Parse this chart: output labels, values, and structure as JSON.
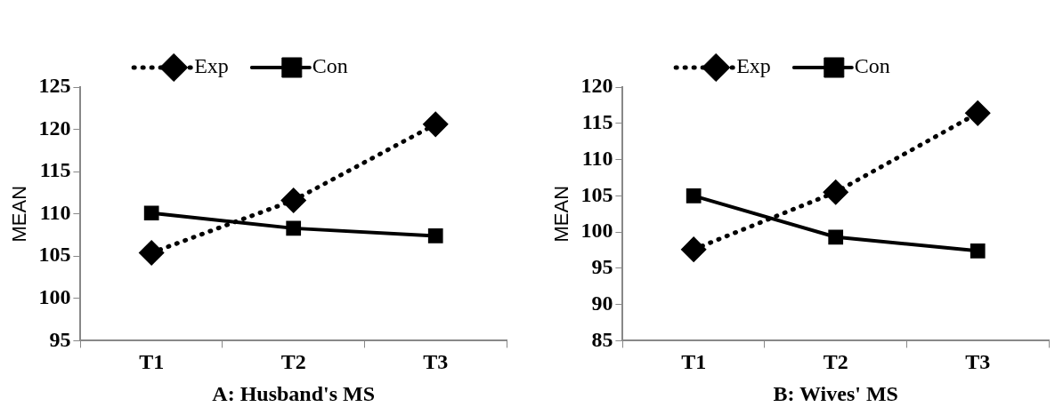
{
  "chart_data": [
    {
      "type": "line",
      "xlabel": "A: Husband's MS",
      "ylabel": "MEAN",
      "categories": [
        "T1",
        "T2",
        "T3"
      ],
      "series": [
        {
          "name": "Exp",
          "color": "#000000",
          "values": [
            105.4,
            111.6,
            120.6
          ],
          "marker": "diamond",
          "line_style": "dotted"
        },
        {
          "name": "Con",
          "color": "#000000",
          "values": [
            110.1,
            108.3,
            107.4
          ],
          "marker": "square",
          "line_style": "solid"
        }
      ],
      "ylim": [
        95,
        125
      ],
      "yticks": [
        95,
        100,
        105,
        110,
        115,
        120,
        125
      ],
      "grid": false,
      "legend": "top"
    },
    {
      "type": "line",
      "xlabel": "B: Wives' MS",
      "ylabel": "MEAN",
      "categories": [
        "T1",
        "T2",
        "T3"
      ],
      "series": [
        {
          "name": "Exp",
          "color": "#000000",
          "values": [
            97.6,
            105.5,
            116.4
          ],
          "marker": "diamond",
          "line_style": "dotted"
        },
        {
          "name": "Con",
          "color": "#000000",
          "values": [
            105.0,
            99.3,
            97.4
          ],
          "marker": "square",
          "line_style": "solid"
        }
      ],
      "ylim": [
        85,
        120
      ],
      "yticks": [
        85,
        90,
        95,
        100,
        105,
        110,
        115,
        120
      ],
      "grid": false,
      "legend": "top"
    }
  ]
}
